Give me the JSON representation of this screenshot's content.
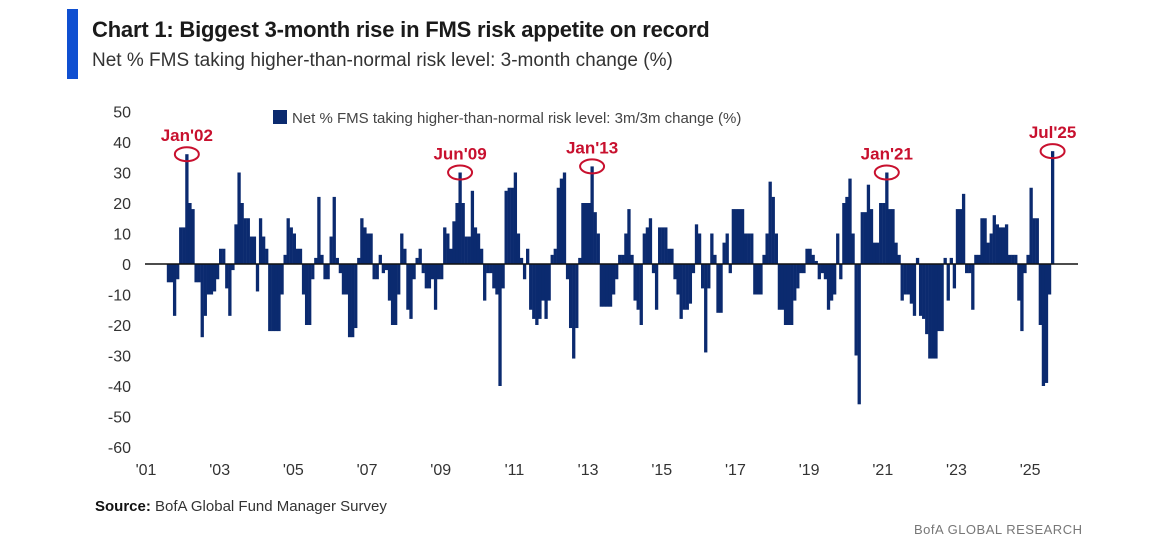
{
  "header": {
    "title": "Chart 1: Biggest 3-month rise in FMS risk appetite on record",
    "subtitle": "Net % FMS taking higher-than-normal risk level: 3-month change (%)"
  },
  "footer": {
    "source_label": "Source:",
    "source_text": "BofA Global Fund Manager Survey",
    "brand": "BofA GLOBAL RESEARCH"
  },
  "colors": {
    "bar": "#0b2a6f",
    "accent": "#0f4fd1",
    "annotation": "#c8102e"
  },
  "chart_data": {
    "type": "bar",
    "title": "Chart 1: Biggest 3-month rise in FMS risk appetite on record",
    "legend": "Net % FMS taking higher-than-normal risk level: 3m/3m change (%)",
    "legend_position": "top-center",
    "xlabel": "",
    "ylabel": "",
    "ylim": [
      -60,
      50
    ],
    "yticks": [
      50,
      40,
      30,
      20,
      10,
      0,
      -10,
      -20,
      -30,
      -40,
      -50,
      -60
    ],
    "xticks": [
      "'01",
      "'03",
      "'05",
      "'07",
      "'09",
      "'11",
      "'13",
      "'15",
      "'17",
      "'19",
      "'21",
      "'23",
      "'25"
    ],
    "grid": false,
    "start": "2001-07",
    "frequency": "monthly",
    "values": [
      -6,
      -6,
      -17,
      -5,
      12,
      12,
      36,
      20,
      18,
      -6,
      -6,
      -24,
      -17,
      -10,
      -10,
      -9,
      -5,
      5,
      5,
      -8,
      -17,
      -2,
      13,
      30,
      20,
      15,
      15,
      9,
      9,
      -9,
      15,
      9,
      5,
      -22,
      -22,
      -22,
      -22,
      -10,
      3,
      15,
      12,
      10,
      5,
      5,
      -10,
      -20,
      -20,
      -5,
      2,
      22,
      3,
      -5,
      -5,
      9,
      22,
      2,
      -3,
      -10,
      -10,
      -24,
      -24,
      -21,
      2,
      15,
      12,
      10,
      10,
      -5,
      -5,
      3,
      -3,
      -2,
      -12,
      -20,
      -20,
      -10,
      10,
      5,
      -15,
      -18,
      -5,
      2,
      5,
      -3,
      -8,
      -8,
      -5,
      -15,
      -5,
      -5,
      12,
      10,
      5,
      14,
      20,
      30,
      20,
      9,
      9,
      24,
      12,
      10,
      5,
      -12,
      -3,
      -3,
      -8,
      -10,
      -40,
      -8,
      24,
      25,
      25,
      30,
      10,
      2,
      -5,
      5,
      -15,
      -18,
      -20,
      -18,
      -12,
      -18,
      -12,
      3,
      5,
      25,
      28,
      30,
      -5,
      -21,
      -31,
      -21,
      2,
      20,
      20,
      20,
      32,
      17,
      10,
      -14,
      -14,
      -14,
      -14,
      -10,
      -5,
      3,
      3,
      10,
      18,
      3,
      -12,
      -15,
      -20,
      10,
      12,
      15,
      -3,
      -15,
      12,
      12,
      12,
      5,
      5,
      -5,
      -10,
      -18,
      -15,
      -15,
      -13,
      -3,
      13,
      10,
      -8,
      -29,
      -8,
      10,
      3,
      -16,
      -16,
      7,
      10,
      -3,
      18,
      18,
      18,
      18,
      10,
      10,
      10,
      -10,
      -10,
      -10,
      3,
      10,
      27,
      22,
      10,
      -15,
      -15,
      -20,
      -20,
      -20,
      -12,
      -8,
      -3,
      -3,
      5,
      5,
      3,
      1,
      -5,
      -3,
      -5,
      -15,
      -12,
      -10,
      10,
      -5,
      20,
      22,
      28,
      10,
      -30,
      -46,
      17,
      17,
      26,
      18,
      7,
      7,
      20,
      20,
      30,
      18,
      18,
      7,
      3,
      -12,
      -10,
      -10,
      -13,
      -17,
      2,
      -17,
      -18,
      -23,
      -31,
      -31,
      -31,
      -22,
      -22,
      2,
      -12,
      2,
      -8,
      18,
      18,
      23,
      -3,
      -3,
      -15,
      3,
      3,
      15,
      15,
      7,
      10,
      16,
      13,
      12,
      12,
      13,
      3,
      3,
      3,
      -12,
      -22,
      -3,
      3,
      25,
      15,
      15,
      -20,
      -40,
      -39,
      -10,
      37
    ],
    "annotations": [
      {
        "label": "Jan'02",
        "date": "2002-01",
        "value": 36
      },
      {
        "label": "Jun'09",
        "date": "2009-06",
        "value": 30
      },
      {
        "label": "Jan'13",
        "date": "2013-01",
        "value": 32
      },
      {
        "label": "Jan'21",
        "date": "2021-01",
        "value": 30
      },
      {
        "label": "Jul'25",
        "date": "2025-07",
        "value": 37
      }
    ]
  }
}
